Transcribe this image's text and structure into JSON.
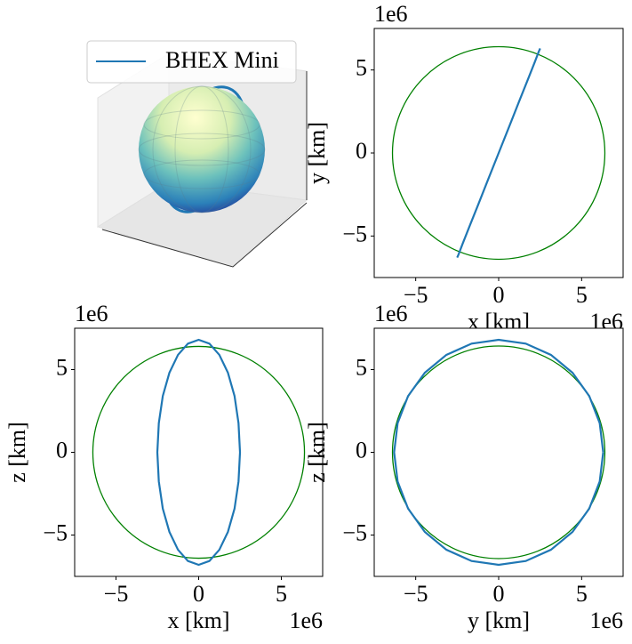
{
  "chart_data": [
    {
      "type": "3d",
      "series": [
        {
          "name": "BHEX Mini",
          "color": "#1f77b4"
        }
      ],
      "legend": "upper left"
    },
    {
      "type": "line",
      "xlabel": "x [km]",
      "ylabel": "y [km]",
      "x_offset": "1e6",
      "y_offset": "1e6",
      "xlim": [
        -7.5,
        7.5
      ],
      "ylim": [
        -7.5,
        7.5
      ],
      "xticks": [
        {
          "value": -5,
          "label": "−5"
        },
        0,
        5
      ],
      "yticks": [
        {
          "value": -5,
          "label": "−5"
        },
        0,
        5
      ],
      "circle": {
        "radius": 6.4,
        "color": "green"
      },
      "series": [
        {
          "color": "#1f77b4",
          "x": [
            2.5,
            2.41,
            2.17,
            1.77,
            1.25,
            0.65,
            0,
            -0.65,
            -1.25,
            -1.77,
            -2.17,
            -2.41,
            -2.5,
            -2.41,
            -2.17,
            -1.77,
            -1.25,
            -0.65,
            0,
            0.65,
            1.25,
            1.77,
            2.17,
            2.41,
            2.5
          ],
          "values": [
            6.3,
            6.09,
            5.46,
            4.45,
            3.15,
            1.63,
            0,
            -1.63,
            -3.15,
            -4.45,
            -5.46,
            -6.09,
            -6.3,
            -6.09,
            -5.46,
            -4.45,
            -3.15,
            -1.63,
            0,
            1.63,
            3.15,
            4.45,
            5.46,
            6.09,
            6.3
          ]
        }
      ]
    },
    {
      "type": "line",
      "xlabel": "x [km]",
      "ylabel": "z [km]",
      "x_offset": "1e6",
      "y_offset": "1e6",
      "xlim": [
        -7.5,
        7.5
      ],
      "ylim": [
        -7.5,
        7.5
      ],
      "xticks": [
        {
          "value": -5,
          "label": "−5"
        },
        0,
        5
      ],
      "yticks": [
        {
          "value": -5,
          "label": "−5"
        },
        0,
        5
      ],
      "circle": {
        "radius": 6.4,
        "color": "green"
      },
      "series": [
        {
          "color": "#1f77b4",
          "x": [
            2.5,
            2.41,
            2.17,
            1.77,
            1.25,
            0.65,
            0,
            -0.65,
            -1.25,
            -1.77,
            -2.17,
            -2.41,
            -2.5,
            -2.41,
            -2.17,
            -1.77,
            -1.25,
            -0.65,
            0,
            0.65,
            1.25,
            1.77,
            2.17,
            2.41,
            2.5
          ],
          "values": [
            0,
            1.76,
            3.4,
            4.81,
            5.89,
            6.57,
            6.8,
            6.57,
            5.89,
            4.81,
            3.4,
            1.76,
            0,
            -1.76,
            -3.4,
            -4.81,
            -5.89,
            -6.57,
            -6.8,
            -6.57,
            -5.89,
            -4.81,
            -3.4,
            -1.76,
            0
          ]
        }
      ]
    },
    {
      "type": "line",
      "xlabel": "y [km]",
      "ylabel": "z [km]",
      "x_offset": "1e6",
      "y_offset": "1e6",
      "xlim": [
        -7.5,
        7.5
      ],
      "ylim": [
        -7.5,
        7.5
      ],
      "xticks": [
        {
          "value": -5,
          "label": "−5"
        },
        0,
        5
      ],
      "yticks": [
        {
          "value": -5,
          "label": "−5"
        },
        0,
        5
      ],
      "circle": {
        "radius": 6.4,
        "color": "green"
      },
      "series": [
        {
          "color": "#1f77b4",
          "x": [
            6.3,
            6.09,
            5.46,
            4.45,
            3.15,
            1.63,
            0,
            -1.63,
            -3.15,
            -4.45,
            -5.46,
            -6.09,
            -6.3,
            -6.09,
            -5.46,
            -4.45,
            -3.15,
            -1.63,
            0,
            1.63,
            3.15,
            4.45,
            5.46,
            6.09,
            6.3
          ],
          "values": [
            0,
            1.76,
            3.4,
            4.81,
            5.89,
            6.57,
            6.8,
            6.57,
            5.89,
            4.81,
            3.4,
            1.76,
            0,
            -1.76,
            -3.4,
            -4.81,
            -5.89,
            -6.57,
            -6.8,
            -6.57,
            -5.89,
            -4.81,
            -3.4,
            -1.76,
            0
          ]
        }
      ]
    }
  ]
}
